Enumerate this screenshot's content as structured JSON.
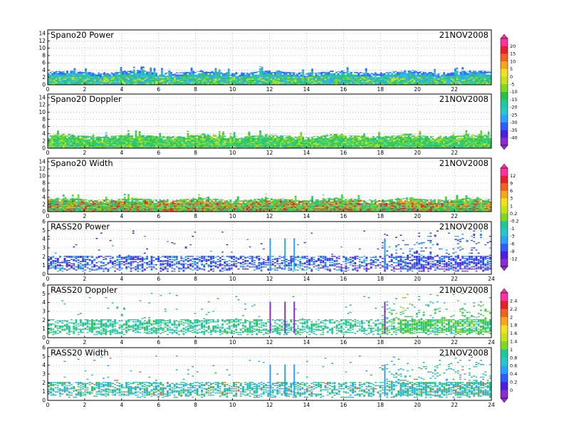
{
  "chart_data": [
    {
      "type": "heatmap",
      "title": "Spano20 Power",
      "date": "21NOV2008",
      "x_ticks": [
        "0",
        "2",
        "4",
        "6",
        "8",
        "10",
        "12",
        "14",
        "16",
        "18",
        "20",
        "22"
      ],
      "y_ticks": [
        "0",
        "2",
        "4",
        "6",
        "8",
        "10",
        "12",
        "14"
      ],
      "xlim": [
        0,
        24
      ],
      "ylim": [
        0,
        15
      ],
      "colorbar_labels": [
        "20",
        "15",
        "10",
        "5",
        "0",
        "-5",
        "-10",
        "-15",
        "-20",
        "-25",
        "-30",
        "-35",
        "-40"
      ],
      "coverage": {
        "base_top_km": 3.5,
        "max_top_km": 6.0
      }
    },
    {
      "type": "heatmap",
      "title": "Spano20 Doppler",
      "date": "21NOV2008",
      "x_ticks": [
        "0",
        "2",
        "4",
        "6",
        "8",
        "10",
        "12",
        "14",
        "16",
        "18",
        "20",
        "22"
      ],
      "y_ticks": [
        "0",
        "2",
        "4",
        "6",
        "8",
        "10",
        "12",
        "14"
      ],
      "xlim": [
        0,
        24
      ],
      "ylim": [
        0,
        15
      ],
      "coverage": {
        "base_top_km": 3.5,
        "max_top_km": 6.0
      }
    },
    {
      "type": "heatmap",
      "title": "Spano20 Width",
      "date": "21NOV2008",
      "x_ticks": [
        "0",
        "2",
        "4",
        "6",
        "8",
        "10",
        "12",
        "14",
        "16",
        "18",
        "20",
        "22"
      ],
      "y_ticks": [
        "0",
        "2",
        "4",
        "6",
        "8",
        "10",
        "12",
        "14"
      ],
      "xlim": [
        0,
        24
      ],
      "ylim": [
        0,
        15
      ],
      "colorbar_labels": [
        "12",
        "9",
        "6",
        "3",
        "1",
        "0.2",
        "-0.2",
        "-1",
        "-3",
        "-6",
        "-9",
        "-12"
      ],
      "coverage": {
        "base_top_km": 3.5,
        "max_top_km": 6.0
      }
    },
    {
      "type": "heatmap",
      "title": "RASS20 Power",
      "date": "21NOV2008",
      "x_ticks": [
        "0",
        "2",
        "4",
        "6",
        "8",
        "10",
        "12",
        "14",
        "16",
        "18",
        "20",
        "22",
        "24"
      ],
      "y_ticks": [
        "0",
        "1",
        "2",
        "3",
        "4",
        "5",
        "6"
      ],
      "xlim": [
        0,
        24
      ],
      "ylim": [
        0,
        6
      ],
      "coverage": {
        "dense_band_km": [
          0.5,
          2.0
        ],
        "scattered_top_km": 5.0
      }
    },
    {
      "type": "heatmap",
      "title": "RASS20 Doppler",
      "date": "21NOV2008",
      "x_ticks": [
        "0",
        "2",
        "4",
        "6",
        "8",
        "10",
        "12",
        "14",
        "16",
        "18",
        "20",
        "22",
        "24"
      ],
      "y_ticks": [
        "0",
        "1",
        "2",
        "3",
        "4",
        "5",
        "6"
      ],
      "xlim": [
        0,
        24
      ],
      "ylim": [
        0,
        6
      ],
      "colorbar_labels": [
        "2.4",
        "2.2",
        "2",
        "1.8",
        "1.6",
        "1.4",
        "1",
        "0.8",
        "0.6",
        "0.4",
        "0.2",
        "0"
      ],
      "coverage": {
        "dense_band_km": [
          0.5,
          2.0
        ],
        "scattered_top_km": 5.0
      }
    },
    {
      "type": "heatmap",
      "title": "RASS20 Width",
      "date": "21NOV2008",
      "x_ticks": [
        "0",
        "2",
        "4",
        "6",
        "8",
        "10",
        "12",
        "14",
        "16",
        "18",
        "20",
        "22",
        "24"
      ],
      "y_ticks": [
        "0",
        "1",
        "2",
        "3",
        "4",
        "5",
        "6"
      ],
      "xlim": [
        0,
        24
      ],
      "ylim": [
        0,
        6
      ],
      "coverage": {
        "dense_band_km": [
          0.5,
          2.0
        ],
        "scattered_top_km": 5.0
      }
    }
  ],
  "colors": {
    "palette": [
      "#8c2bd2",
      "#4a1fe0",
      "#2f5cff",
      "#2aa0ff",
      "#25c8c8",
      "#1fc79a",
      "#27c24a",
      "#7dd81f",
      "#c4e21b",
      "#f0e21a",
      "#f7a51a",
      "#f2621c",
      "#e8202a",
      "#ff30a0"
    ],
    "grid_dot": "#9a9a9a",
    "frame": "#000000"
  }
}
